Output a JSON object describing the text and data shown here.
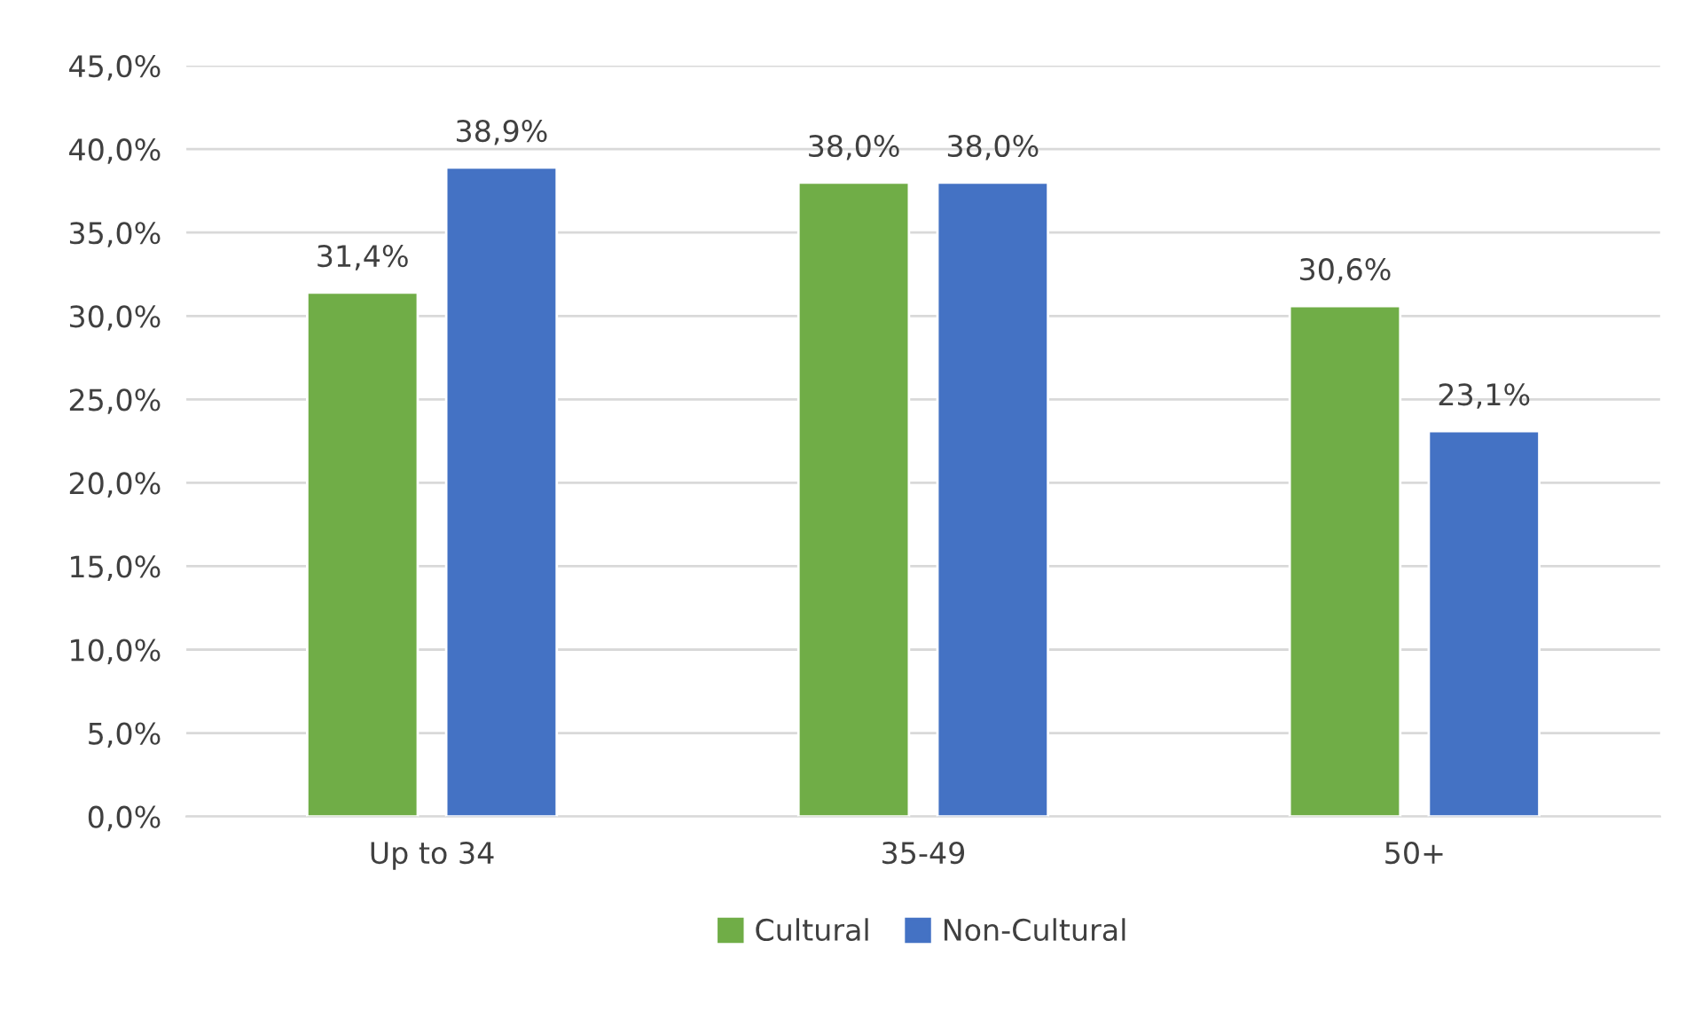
{
  "chart_data": {
    "type": "bar",
    "categories": [
      "Up to 34",
      "35-49",
      "50+"
    ],
    "series": [
      {
        "name": "Cultural",
        "color": "#70ad47",
        "values": [
          31.4,
          38.0,
          30.6
        ],
        "value_labels": [
          "31,4%",
          "38,0%",
          "30,6%"
        ]
      },
      {
        "name": "Non-Cultural",
        "color": "#4472c4",
        "values": [
          38.9,
          38.0,
          23.1
        ],
        "value_labels": [
          "38,9%",
          "38,0%",
          "23,1%"
        ]
      }
    ],
    "ylim": [
      0,
      45
    ],
    "yticks": [
      {
        "value": 0,
        "label": "0,0%"
      },
      {
        "value": 5,
        "label": "5,0%"
      },
      {
        "value": 10,
        "label": "10,0%"
      },
      {
        "value": 15,
        "label": "15,0%"
      },
      {
        "value": 20,
        "label": "20,0%"
      },
      {
        "value": 25,
        "label": "25,0%"
      },
      {
        "value": 30,
        "label": "30,0%"
      },
      {
        "value": 35,
        "label": "35,0%"
      },
      {
        "value": 40,
        "label": "40,0%"
      },
      {
        "value": 45,
        "label": "45,0%"
      }
    ],
    "grid": "y",
    "legend": "bottom"
  }
}
